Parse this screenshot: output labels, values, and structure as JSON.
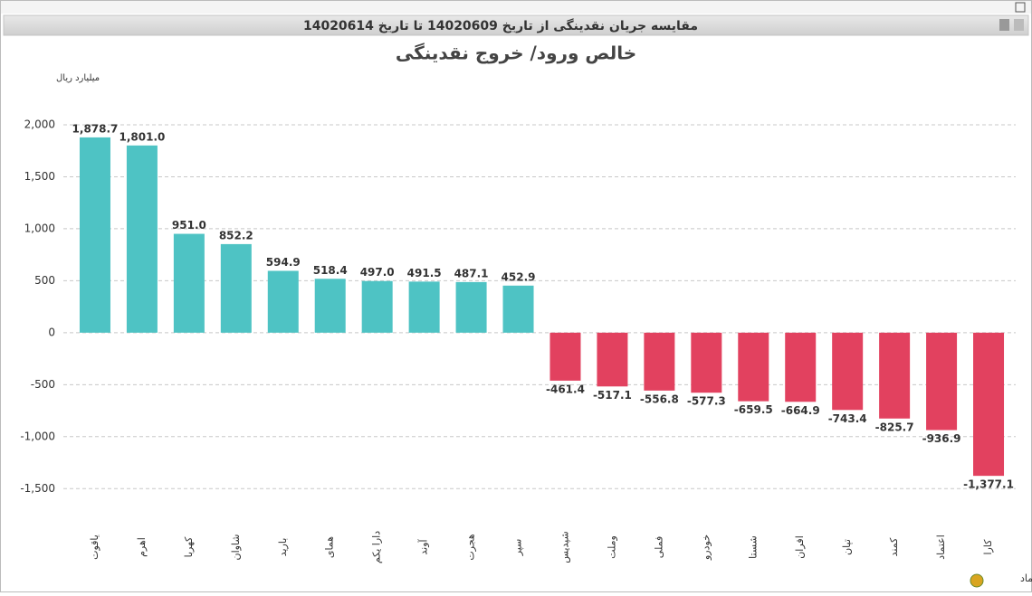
{
  "header": {
    "title": "مقایسه جریان نقدینگی از تاریخ 14020609 تا تاریخ 14020614"
  },
  "chart_data": {
    "type": "bar",
    "title": "خالص ورود/ خروج نقدینگی",
    "y_label": "میلیارد ریال",
    "x_label": "نماد",
    "categories": [
      "یاقوت",
      "اهرم",
      "کهربا",
      "شاوان",
      "بارید",
      "همای",
      "دارا یکم",
      "آوند",
      "هجرت",
      "سپر",
      "شپدیس",
      "وملت",
      "فملی",
      "خودرو",
      "شستا",
      "افران",
      "تپان",
      "کمند",
      "اعتماد",
      "کارا"
    ],
    "values": [
      1878.7,
      1801.0,
      951.0,
      852.2,
      594.9,
      518.4,
      497.0,
      491.5,
      487.1,
      452.9,
      -461.4,
      -517.1,
      -556.8,
      -577.3,
      -659.5,
      -664.9,
      -743.4,
      -825.7,
      -936.9,
      -1377.1
    ],
    "value_labels": [
      "1,878.7",
      "1,801.0",
      "951.0",
      "852.2",
      "594.9",
      "518.4",
      "497.0",
      "491.5",
      "487.1",
      "452.9",
      "-461.4",
      "-517.1",
      "-556.8",
      "-577.3",
      "-659.5",
      "-664.9",
      "-743.4",
      "-825.7",
      "-936.9",
      "-1,377.1"
    ],
    "positive_color": "#4ec3c4",
    "negative_color": "#e2415f",
    "ylim": [
      -1750,
      2300
    ],
    "yticks": [
      {
        "value": -1500,
        "label": "-1,500"
      },
      {
        "value": -1000,
        "label": "-1,000"
      },
      -500,
      0,
      500,
      {
        "value": 1000,
        "label": "1,000"
      },
      {
        "value": 1500,
        "label": "1,500"
      },
      {
        "value": 2000,
        "label": "2,000"
      }
    ],
    "grid": true
  }
}
